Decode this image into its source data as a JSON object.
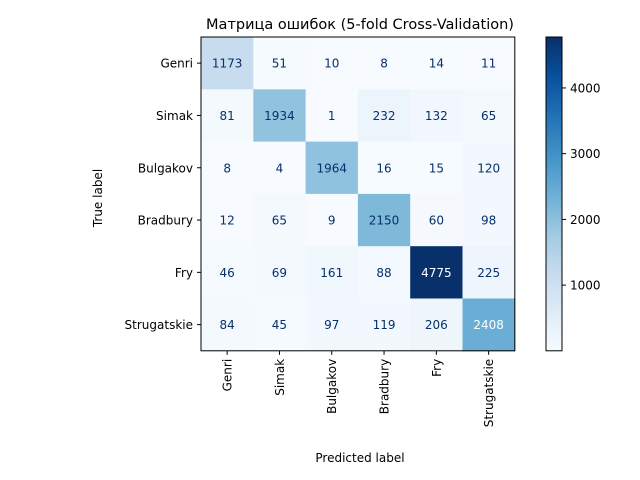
{
  "chart_data": {
    "type": "heatmap",
    "title": "Матрица ошибок (5-fold Cross-Validation)",
    "xlabel": "Predicted label",
    "ylabel": "True label",
    "x_categories": [
      "Genri",
      "Simak",
      "Bulgakov",
      "Bradbury",
      "Fry",
      "Strugatskie"
    ],
    "y_categories": [
      "Genri",
      "Simak",
      "Bulgakov",
      "Bradbury",
      "Fry",
      "Strugatskie"
    ],
    "values": [
      [
        1173,
        51,
        10,
        8,
        14,
        11
      ],
      [
        81,
        1934,
        1,
        232,
        132,
        65
      ],
      [
        8,
        4,
        1964,
        16,
        15,
        120
      ],
      [
        12,
        65,
        9,
        2150,
        60,
        98
      ],
      [
        46,
        69,
        161,
        88,
        4775,
        225
      ],
      [
        84,
        45,
        97,
        119,
        206,
        2408
      ]
    ],
    "colormap": "Blues",
    "color_range": [
      1,
      4775
    ],
    "colorbar_ticks": [
      1000,
      2000,
      3000,
      4000
    ],
    "colorbar_tick_labels": [
      "1000",
      "2000",
      "3000",
      "4000"
    ]
  }
}
